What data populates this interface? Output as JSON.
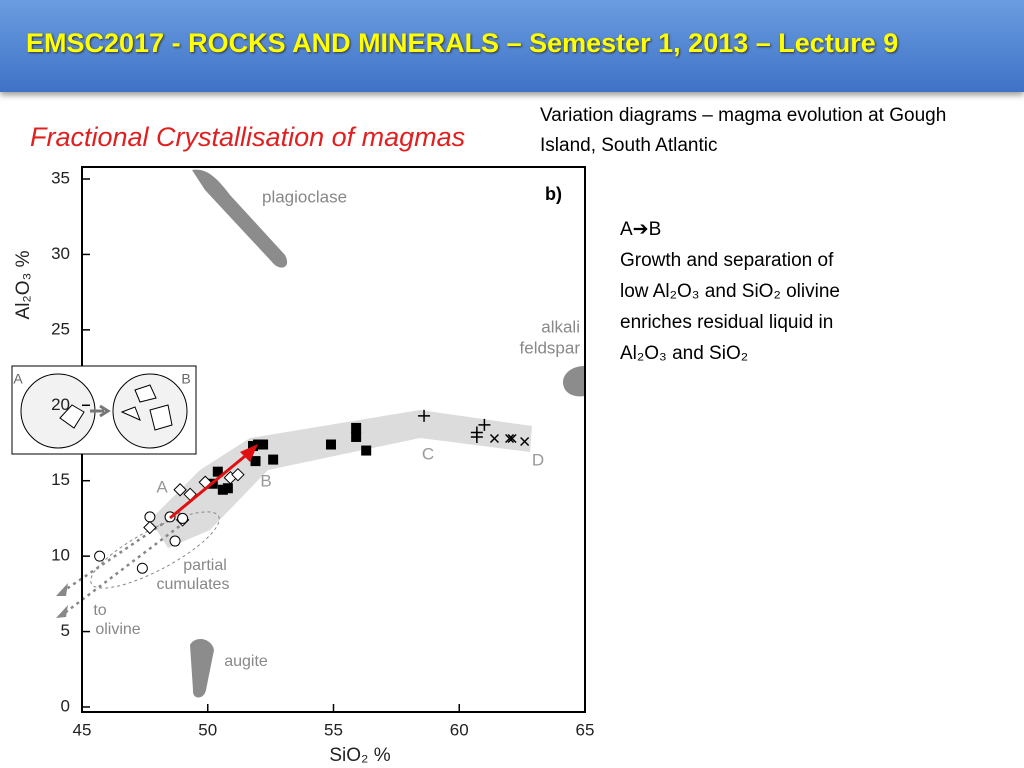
{
  "header": {
    "title": "EMSC2017 - ROCKS AND MINERALS – Semester 1, 2013 – Lecture 9"
  },
  "heading": "Fractional Crystallisation of magmas",
  "caption": "Variation diagrams – magma evolution at Gough Island, South Atlantic",
  "notes": [
    "A➔B",
    "Growth and separation of",
    "low Al₂O₃ and SiO₂ olivine",
    "enriches residual liquid in",
    "Al₂O₃ and SiO₂"
  ],
  "chart_data": {
    "type": "scatter",
    "xlabel": "SiO₂ %",
    "ylabel": "Al₂O₃ %",
    "xlim": [
      45,
      65
    ],
    "xticks": [
      45,
      50,
      55,
      60,
      65
    ],
    "ylim": [
      0,
      35
    ],
    "yticks": [
      0,
      5,
      10,
      15,
      20,
      25,
      30,
      35
    ],
    "annotations": [
      "plagioclase",
      "b)",
      "alkali",
      "feldspar",
      "A",
      "B",
      "C",
      "D",
      "partial",
      "cumulates",
      "to",
      "olivine",
      "augite",
      "A",
      "B"
    ],
    "series": [
      {
        "marker": "square",
        "color": "#000000",
        "x": [
          52.0,
          51.8,
          52.2,
          51.9,
          52.6,
          54.9,
          55.9,
          55.9,
          56.3,
          50.4,
          50.6,
          50.8,
          50.2
        ],
        "y": [
          17.4,
          17.3,
          17.4,
          16.3,
          16.4,
          17.4,
          18.5,
          17.9,
          17.0,
          15.6,
          14.4,
          14.5,
          14.8
        ]
      },
      {
        "marker": "diamond",
        "color": "#000000",
        "x": [
          48.9,
          49.3,
          49.9,
          50.9,
          51.2,
          49.0,
          47.7
        ],
        "y": [
          14.4,
          14.1,
          14.9,
          15.2,
          15.4,
          12.4,
          11.9
        ]
      },
      {
        "marker": "circle",
        "color": "#000000",
        "x": [
          47.7,
          48.5,
          49.0,
          48.7,
          45.7,
          47.4
        ],
        "y": [
          12.6,
          12.6,
          12.5,
          11.0,
          10.0,
          9.2
        ]
      },
      {
        "marker": "plus",
        "color": "#000000",
        "x": [
          58.6,
          60.7,
          60.7,
          61.0
        ],
        "y": [
          19.3,
          18.2,
          17.9,
          18.7
        ]
      },
      {
        "marker": "cross",
        "color": "#000000",
        "x": [
          61.4,
          62.0,
          62.1,
          62.6
        ],
        "y": [
          17.8,
          17.8,
          17.8,
          17.6
        ]
      }
    ]
  }
}
